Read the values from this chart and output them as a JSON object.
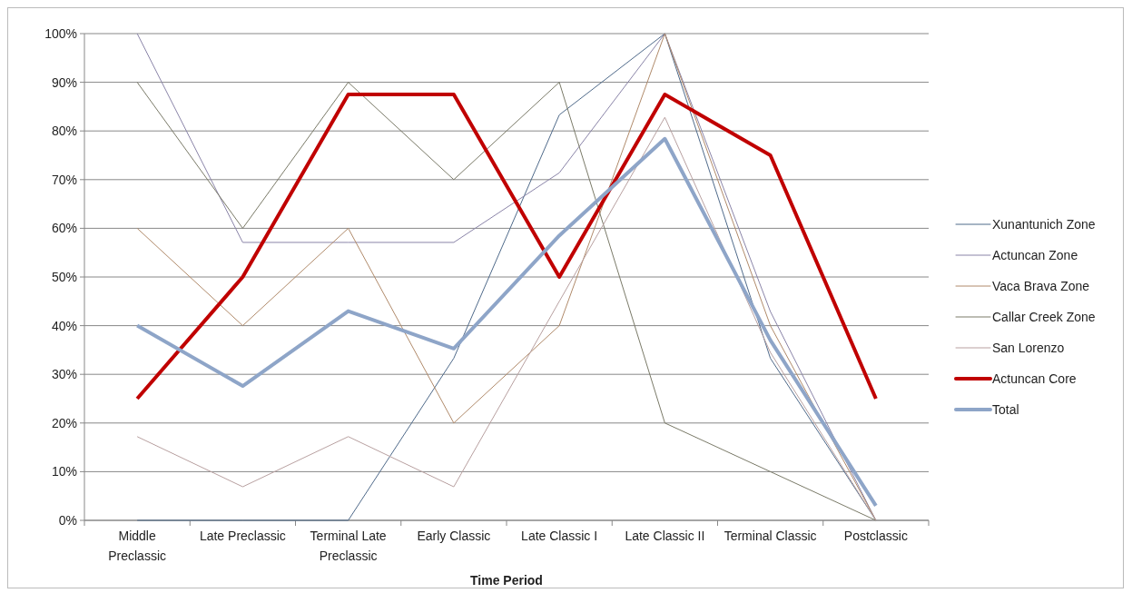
{
  "chart_data": {
    "type": "line",
    "xlabel": "Time Period",
    "categories": [
      "Middle Preclassic",
      "Late Preclassic",
      "Terminal Late Preclassic",
      "Early Classic",
      "Late Classic I",
      "Late Classic II",
      "Terminal Classic",
      "Postclassic"
    ],
    "ylim": [
      0,
      100
    ],
    "yticks": [
      {
        "value": 0,
        "label": "0%"
      },
      {
        "value": 10,
        "label": "10%"
      },
      {
        "value": 20,
        "label": "20%"
      },
      {
        "value": 30,
        "label": "30%"
      },
      {
        "value": 40,
        "label": "40%"
      },
      {
        "value": 50,
        "label": "50%"
      },
      {
        "value": 60,
        "label": "60%"
      },
      {
        "value": 70,
        "label": "70%"
      },
      {
        "value": 80,
        "label": "80%"
      },
      {
        "value": 90,
        "label": "90%"
      },
      {
        "value": 100,
        "label": "100%"
      }
    ],
    "grid": "y",
    "legend": "right",
    "marker": "none",
    "line_style": "solid",
    "series": [
      {
        "name": "Xunantunich Zone",
        "color": "#4f6a8a",
        "values": [
          0,
          0,
          0,
          33.3,
          83.3,
          100,
          33.3,
          0
        ]
      },
      {
        "name": "Actuncan Zone",
        "color": "#8a84a8",
        "values": [
          100,
          57.1,
          57.1,
          57.1,
          71.4,
          100,
          42.9,
          0
        ]
      },
      {
        "name": "Vaca Brava Zone",
        "color": "#b08a6a",
        "values": [
          60,
          40,
          60,
          20,
          40,
          100,
          40,
          0
        ]
      },
      {
        "name": "Callar Creek Zone",
        "color": "#7a7a68",
        "values": [
          90,
          60,
          90,
          70,
          90,
          20,
          10,
          0
        ]
      },
      {
        "name": "San Lorenzo",
        "color": "#b8a0a0",
        "values": [
          17.2,
          6.9,
          17.2,
          6.9,
          45,
          82.8,
          34.5,
          0
        ]
      },
      {
        "name": "Actuncan Core",
        "color": "#c00000",
        "values": [
          25,
          50,
          87.5,
          87.5,
          50,
          87.5,
          75,
          25
        ]
      },
      {
        "name": "Total",
        "color": "#8ea5c8",
        "values": [
          40,
          27.6,
          43,
          35.3,
          58.5,
          78.4,
          37,
          3
        ]
      }
    ]
  }
}
